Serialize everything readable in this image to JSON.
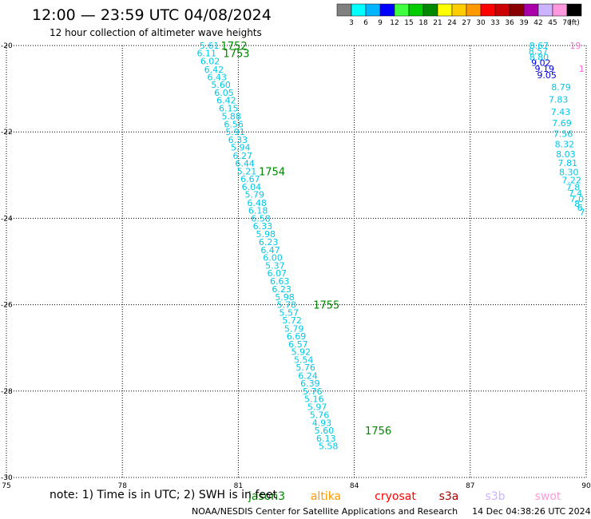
{
  "header": {
    "title": "12:00 — 23:59 UTC 04/08/2024",
    "subtitle": "12 hour collection of altimeter wave heights"
  },
  "colorbar": {
    "colors": [
      "#808080",
      "#00ffff",
      "#00b4ff",
      "#0000ff",
      "#40ff40",
      "#00cc00",
      "#008800",
      "#ffff00",
      "#ffcc00",
      "#ff9900",
      "#ff0000",
      "#cc0000",
      "#880000",
      "#aa00aa",
      "#ccb3ff",
      "#ff99dd",
      "#000000"
    ],
    "labels": [
      "3",
      "6",
      "9",
      "12",
      "15",
      "18",
      "21",
      "24",
      "27",
      "30",
      "33",
      "36",
      "39",
      "42",
      "45",
      "70"
    ],
    "unit": "(ft)"
  },
  "footer": {
    "note": "note:  1) Time is in UTC; 2) SWH is in feet",
    "satellites": [
      {
        "name": "jason3",
        "color": "#008800"
      },
      {
        "name": "altika",
        "color": "#ff9900"
      },
      {
        "name": "cryosat",
        "color": "#ff0000"
      },
      {
        "name": "s3a",
        "color": "#aa0000"
      },
      {
        "name": "s3b",
        "color": "#ccb3ff"
      },
      {
        "name": "swot",
        "color": "#ff99dd"
      }
    ],
    "credit": "NOAA/NESDIS Center for Satellite Applications and Research",
    "timestamp": "14 Dec 04:38:26 UTC 2024"
  },
  "chart_data": {
    "type": "scatter",
    "xlim": [
      75,
      90
    ],
    "ylim": [
      -30,
      -20
    ],
    "xticks": [
      75,
      78,
      81,
      84,
      87,
      90
    ],
    "yticks": [
      -20,
      -22,
      -24,
      -26,
      -28,
      -30
    ],
    "xtick_labels": [
      "75",
      "78",
      "81",
      "84",
      "87",
      "90"
    ],
    "ytick_labels": [
      "-20",
      "-22",
      "-24",
      "-26",
      "-28",
      "-30"
    ],
    "grid": true,
    "tracks": [
      {
        "color": "#00c8e6",
        "points": [
          {
            "lon": 80.25,
            "lat": -20.0,
            "swh": "5.61"
          },
          {
            "lon": 80.18,
            "lat": -20.18,
            "swh": "6.11"
          },
          {
            "lon": 80.27,
            "lat": -20.36,
            "swh": "6.02"
          },
          {
            "lon": 80.37,
            "lat": -20.55,
            "swh": "6.42"
          },
          {
            "lon": 80.45,
            "lat": -20.73,
            "swh": "6.43"
          },
          {
            "lon": 80.55,
            "lat": -20.91,
            "swh": "5.60"
          },
          {
            "lon": 80.63,
            "lat": -21.09,
            "swh": "6.05"
          },
          {
            "lon": 80.69,
            "lat": -21.27,
            "swh": "6.42"
          },
          {
            "lon": 80.75,
            "lat": -21.45,
            "swh": "6.15"
          },
          {
            "lon": 80.82,
            "lat": -21.64,
            "swh": "5.88"
          },
          {
            "lon": 80.88,
            "lat": -21.82,
            "swh": "6.56"
          },
          {
            "lon": 80.92,
            "lat": -22.0,
            "swh": "5.91"
          },
          {
            "lon": 80.99,
            "lat": -22.18,
            "swh": "6.33"
          },
          {
            "lon": 81.06,
            "lat": -22.36,
            "swh": "5.94"
          },
          {
            "lon": 81.11,
            "lat": -22.55,
            "swh": "6.27"
          },
          {
            "lon": 81.17,
            "lat": -22.73,
            "swh": "6.44"
          },
          {
            "lon": 81.22,
            "lat": -22.91,
            "swh": "5.21"
          },
          {
            "lon": 81.31,
            "lat": -23.09,
            "swh": "6.67"
          },
          {
            "lon": 81.34,
            "lat": -23.27,
            "swh": "6.04"
          },
          {
            "lon": 81.42,
            "lat": -23.45,
            "swh": "5.79"
          },
          {
            "lon": 81.48,
            "lat": -23.64,
            "swh": "6.48"
          },
          {
            "lon": 81.51,
            "lat": -23.82,
            "swh": "6.18"
          },
          {
            "lon": 81.58,
            "lat": -24.0,
            "swh": "6.58"
          },
          {
            "lon": 81.63,
            "lat": -24.18,
            "swh": "6.33"
          },
          {
            "lon": 81.71,
            "lat": -24.36,
            "swh": "5.98"
          },
          {
            "lon": 81.78,
            "lat": -24.55,
            "swh": "6.23"
          },
          {
            "lon": 81.83,
            "lat": -24.73,
            "swh": "6.47"
          },
          {
            "lon": 81.89,
            "lat": -24.91,
            "swh": "6.00"
          },
          {
            "lon": 81.95,
            "lat": -25.09,
            "swh": "5.37"
          },
          {
            "lon": 82.0,
            "lat": -25.27,
            "swh": "6.07"
          },
          {
            "lon": 82.07,
            "lat": -25.45,
            "swh": "6.63"
          },
          {
            "lon": 82.12,
            "lat": -25.64,
            "swh": "6.23"
          },
          {
            "lon": 82.2,
            "lat": -25.82,
            "swh": "5.98"
          },
          {
            "lon": 82.25,
            "lat": -26.0,
            "swh": "5.78"
          },
          {
            "lon": 82.31,
            "lat": -26.18,
            "swh": "5.57"
          },
          {
            "lon": 82.39,
            "lat": -26.36,
            "swh": "5.72"
          },
          {
            "lon": 82.44,
            "lat": -26.55,
            "swh": "5.79"
          },
          {
            "lon": 82.5,
            "lat": -26.73,
            "swh": "6.69"
          },
          {
            "lon": 82.55,
            "lat": -26.91,
            "swh": "6.57"
          },
          {
            "lon": 82.62,
            "lat": -27.09,
            "swh": "5.92"
          },
          {
            "lon": 82.69,
            "lat": -27.27,
            "swh": "5.54"
          },
          {
            "lon": 82.74,
            "lat": -27.45,
            "swh": "5.76"
          },
          {
            "lon": 82.8,
            "lat": -27.64,
            "swh": "6.24"
          },
          {
            "lon": 82.86,
            "lat": -27.82,
            "swh": "6.39"
          },
          {
            "lon": 82.92,
            "lat": -28.0,
            "swh": "5.76"
          },
          {
            "lon": 82.96,
            "lat": -28.18,
            "swh": "5.16"
          },
          {
            "lon": 83.04,
            "lat": -28.36,
            "swh": "5.97"
          },
          {
            "lon": 83.1,
            "lat": -28.55,
            "swh": "5.76"
          },
          {
            "lon": 83.16,
            "lat": -28.73,
            "swh": "4.93"
          },
          {
            "lon": 83.22,
            "lat": -28.91,
            "swh": "5.60"
          },
          {
            "lon": 83.27,
            "lat": -29.09,
            "swh": "6.13"
          },
          {
            "lon": 83.33,
            "lat": -29.27,
            "swh": "5.58"
          }
        ]
      },
      {
        "color": "#00c8e6",
        "points": [
          {
            "lon": 88.78,
            "lat": -20.0,
            "swh": "8.67"
          },
          {
            "lon": 88.76,
            "lat": -20.13,
            "swh": "8.57"
          },
          {
            "lon": 88.78,
            "lat": -20.27,
            "swh": "8.80"
          },
          {
            "lon": 89.35,
            "lat": -20.96,
            "swh": "8.79"
          },
          {
            "lon": 89.28,
            "lat": -21.25,
            "swh": "7.83"
          },
          {
            "lon": 89.34,
            "lat": -21.53,
            "swh": "7.43"
          },
          {
            "lon": 89.37,
            "lat": -21.79,
            "swh": "7.69"
          },
          {
            "lon": 89.4,
            "lat": -22.04,
            "swh": "7.56"
          },
          {
            "lon": 89.44,
            "lat": -22.28,
            "swh": "8.32"
          },
          {
            "lon": 89.47,
            "lat": -22.51,
            "swh": "8.03"
          },
          {
            "lon": 89.52,
            "lat": -22.72,
            "swh": "7.81"
          },
          {
            "lon": 89.55,
            "lat": -22.93,
            "swh": "8.30"
          },
          {
            "lon": 89.62,
            "lat": -23.11,
            "swh": "7.22"
          },
          {
            "lon": 89.66,
            "lat": -23.28,
            "swh": "7.8"
          },
          {
            "lon": 89.72,
            "lat": -23.42,
            "swh": "7.4"
          },
          {
            "lon": 89.76,
            "lat": -23.55,
            "swh": "7.0"
          },
          {
            "lon": 89.8,
            "lat": -23.66,
            "swh": "8."
          },
          {
            "lon": 89.84,
            "lat": -23.75,
            "swh": "6"
          },
          {
            "lon": 89.9,
            "lat": -23.85,
            "swh": "7"
          }
        ]
      },
      {
        "color": "#0000e0",
        "points": [
          {
            "lon": 88.83,
            "lat": -20.4,
            "swh": "9.02"
          },
          {
            "lon": 88.92,
            "lat": -20.54,
            "swh": "9.19"
          },
          {
            "lon": 88.98,
            "lat": -20.68,
            "swh": "9.05"
          }
        ]
      },
      {
        "color": "#ff66dd",
        "points": [
          {
            "lon": 89.72,
            "lat": -20.0,
            "swh": "19"
          },
          {
            "lon": 89.88,
            "lat": -20.54,
            "swh": "1"
          }
        ]
      }
    ],
    "orbit_labels": [
      {
        "lon": 80.89,
        "lat": -20.0,
        "text": "1752"
      },
      {
        "lon": 80.95,
        "lat": -20.18,
        "text": "1753"
      },
      {
        "lon": 81.87,
        "lat": -22.91,
        "text": "1754"
      },
      {
        "lon": 83.28,
        "lat": -26.0,
        "text": "1755"
      },
      {
        "lon": 84.62,
        "lat": -28.91,
        "text": "1756"
      }
    ],
    "orbit_label_color": "#008800"
  }
}
